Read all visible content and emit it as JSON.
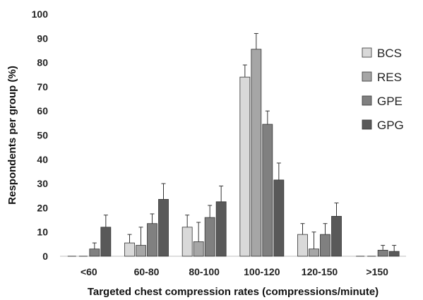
{
  "chart_data": {
    "type": "bar",
    "title": "",
    "xlabel": "Targeted chest compression rates (compressions/minute)",
    "ylabel": "Respondents per group (%)",
    "ylim": [
      0,
      100
    ],
    "yticks": [
      0,
      10,
      20,
      30,
      40,
      50,
      60,
      70,
      80,
      90,
      100
    ],
    "grid": false,
    "legend_position": "right",
    "categories": [
      "<60",
      "60-80",
      "80-100",
      "100-120",
      "120-150",
      ">150"
    ],
    "series": [
      {
        "name": "BCS",
        "color": "#d9d9d9",
        "values": [
          0,
          5.5,
          12,
          74,
          9,
          0
        ],
        "error": [
          0,
          3.5,
          5,
          5,
          4.5,
          0
        ]
      },
      {
        "name": "RES",
        "color": "#a6a6a6",
        "values": [
          0,
          4.5,
          6,
          85.5,
          3,
          0
        ],
        "error": [
          0,
          7.5,
          8,
          6.5,
          7,
          0
        ]
      },
      {
        "name": "GPE",
        "color": "#808080",
        "values": [
          3,
          13.5,
          16,
          54.5,
          9,
          2.5
        ],
        "error": [
          2.5,
          4,
          5,
          5.5,
          4.5,
          2
        ]
      },
      {
        "name": "GPG",
        "color": "#595959",
        "values": [
          12,
          23.5,
          22.5,
          31.5,
          16.5,
          2
        ],
        "error": [
          5,
          6.5,
          6.5,
          7,
          5.5,
          2.5
        ]
      }
    ]
  }
}
